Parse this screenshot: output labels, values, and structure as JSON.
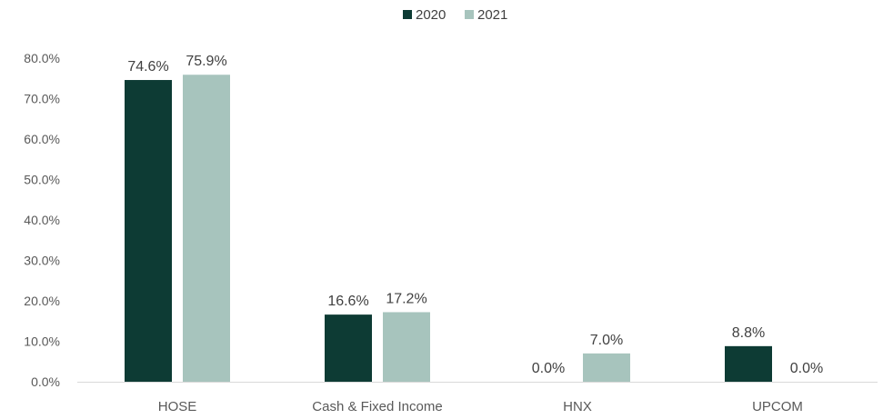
{
  "chart_data": {
    "type": "bar",
    "categories": [
      "HOSE",
      "Cash & Fixed Income",
      "HNX",
      "UPCOM"
    ],
    "series": [
      {
        "name": "2020",
        "values": [
          74.6,
          16.6,
          0.0,
          8.8
        ],
        "labels": [
          "74.6%",
          "16.6%",
          "0.0%",
          "8.8%"
        ],
        "color": "#0d3b34"
      },
      {
        "name": "2021",
        "values": [
          75.9,
          17.2,
          7.0,
          0.0
        ],
        "labels": [
          "75.9%",
          "17.2%",
          "7.0%",
          "0.0%"
        ],
        "color": "#a7c4bd"
      }
    ],
    "yticks": [
      "0.0%",
      "10.0%",
      "20.0%",
      "30.0%",
      "40.0%",
      "50.0%",
      "60.0%",
      "70.0%",
      "80.0%"
    ],
    "ylim": [
      0,
      80
    ],
    "grid": false,
    "legend_position": "top-center"
  }
}
